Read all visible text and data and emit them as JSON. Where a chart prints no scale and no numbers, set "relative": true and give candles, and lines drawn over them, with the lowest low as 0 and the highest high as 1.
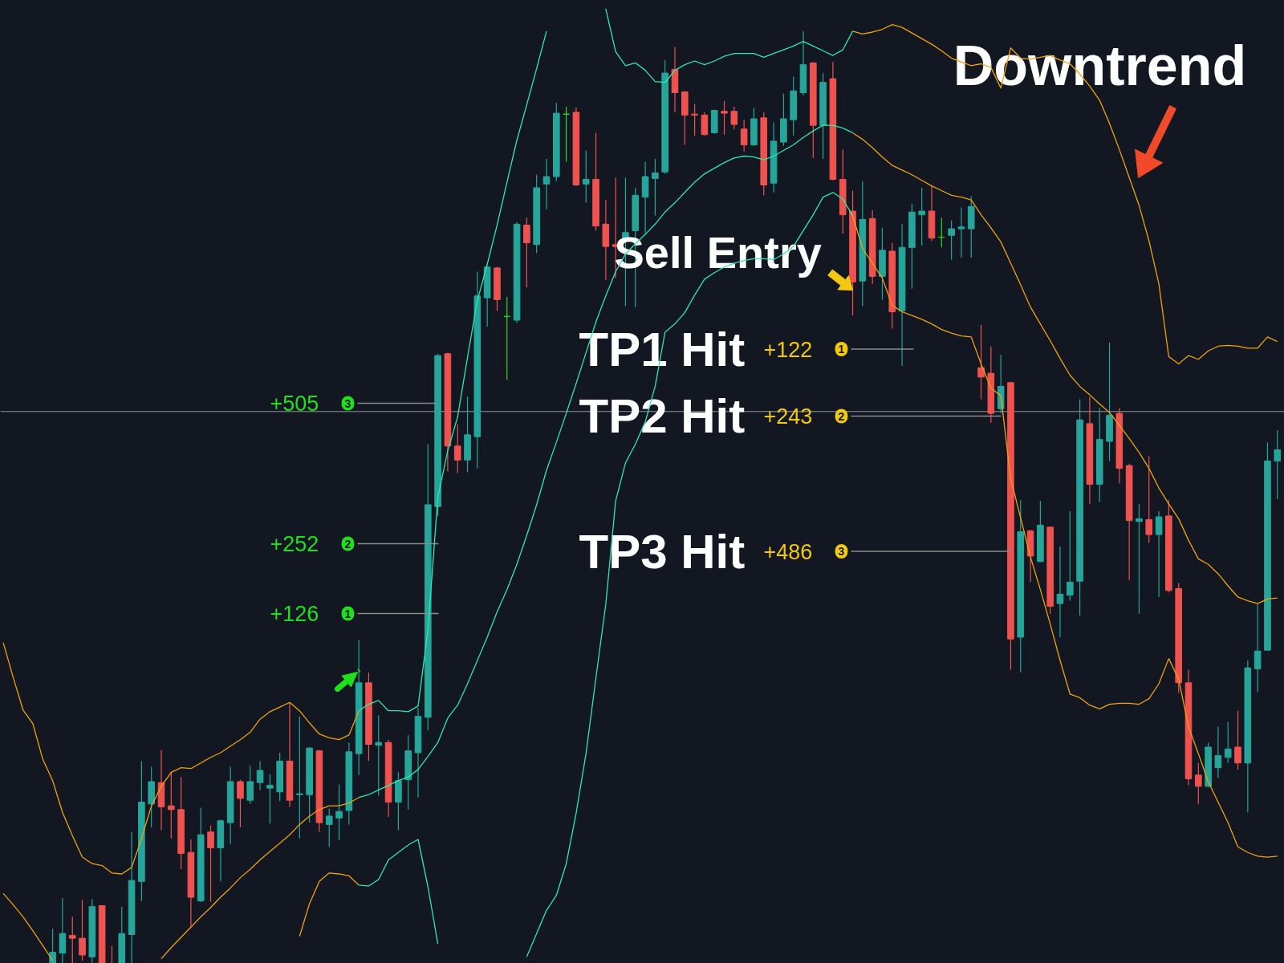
{
  "chart_data": {
    "type": "candlestick",
    "relative": true,
    "tick_labels": false,
    "categories": [
      null,
      null,
      null,
      null,
      null,
      null,
      null,
      null,
      null,
      null,
      null,
      null,
      null,
      null,
      null,
      null,
      null,
      null,
      null,
      null,
      null,
      null,
      null,
      null,
      null,
      null,
      null,
      null,
      null,
      null,
      null,
      null,
      null,
      null,
      null,
      null,
      null,
      null,
      null,
      null,
      null,
      null,
      null,
      null,
      null,
      null,
      null,
      null,
      null,
      null,
      null,
      null,
      null,
      null,
      null,
      null,
      null,
      null,
      null,
      null,
      null,
      null,
      null,
      null,
      null,
      null,
      null,
      null,
      null,
      null,
      null,
      null,
      null,
      null,
      null,
      null,
      null,
      null,
      null,
      null,
      null,
      null,
      null,
      null,
      null,
      null,
      null,
      null,
      null,
      null,
      null,
      null,
      null,
      null,
      null,
      null,
      null,
      null,
      null,
      null,
      null,
      null,
      null,
      null,
      null,
      null,
      null,
      null,
      null,
      null,
      null,
      null,
      null,
      null,
      null,
      null,
      null,
      null,
      null,
      null,
      null,
      null,
      null,
      null,
      null,
      null,
      null,
      null,
      null,
      null
    ],
    "ohlc": [
      null,
      null,
      null,
      null,
      null,
      [
        0,
        0.037,
        0,
        0.012
      ],
      [
        0.011,
        0.07,
        0,
        0.032
      ],
      [
        0.03,
        0.05,
        0,
        0.027
      ],
      [
        0.027,
        0.068,
        0.003,
        0.009
      ],
      [
        0.007,
        0.069,
        0,
        0.061
      ],
      [
        0.062,
        0.062,
        0,
        0
      ],
      [
        0,
        0.019,
        0,
        0
      ],
      [
        0,
        0.061,
        0,
        0.032
      ],
      [
        0.031,
        0.141,
        0,
        0.089
      ],
      [
        0.088,
        0.217,
        0.067,
        0.173
      ],
      [
        0.171,
        0.211,
        0.146,
        0.195
      ],
      [
        0.194,
        0.229,
        0.143,
        0.168
      ],
      [
        0.169,
        0.205,
        0.134,
        0.165
      ],
      [
        0.165,
        0.2,
        0.101,
        0.118
      ],
      [
        0.119,
        0.133,
        0.039,
        0.071
      ],
      [
        0.067,
        0.167,
        0.066,
        0.138
      ],
      [
        0.141,
        0.148,
        0.066,
        0.124
      ],
      [
        0.124,
        0.154,
        0.088,
        0.153
      ],
      [
        0.151,
        0.211,
        0.128,
        0.195
      ],
      [
        0.195,
        0.197,
        0.146,
        0.177
      ],
      [
        0.175,
        0.212,
        0.171,
        0.195
      ],
      [
        0.194,
        0.217,
        0.186,
        0.207
      ],
      [
        0.188,
        0.203,
        0.15,
        0.191
      ],
      [
        0.184,
        0.226,
        0.174,
        0.217
      ],
      [
        0.217,
        0.28,
        0.168,
        0.175
      ],
      [
        0.181,
        0.265,
        0.134,
        0.182
      ],
      [
        0.181,
        0.232,
        0.151,
        0.231
      ],
      [
        0.228,
        0.229,
        0.141,
        0.151
      ],
      [
        0.149,
        0.166,
        0.125,
        0.158
      ],
      [
        0.156,
        0.192,
        0.132,
        0.163
      ],
      [
        0.164,
        0.237,
        0.149,
        0.227
      ],
      [
        0.225,
        0.347,
        0.202,
        0.301
      ],
      [
        0.301,
        0.312,
        0.217,
        0.235
      ],
      [
        0.234,
        0.266,
        0.18,
        0.237
      ],
      [
        0.237,
        0.24,
        0.157,
        0.173
      ],
      [
        0.173,
        0.205,
        0.143,
        0.196
      ],
      [
        0.197,
        0.245,
        0.165,
        0.228
      ],
      [
        0.226,
        0.274,
        0.178,
        0.265
      ],
      [
        0.264,
        0.557,
        0.25,
        0.492
      ],
      [
        0.49,
        0.654,
        0.48,
        0.652
      ],
      [
        0.654,
        0.655,
        0.528,
        0.555
      ],
      [
        0.555,
        0.578,
        0.526,
        0.54
      ],
      [
        0.54,
        0.608,
        0.527,
        0.567
      ],
      [
        0.565,
        0.742,
        0.531,
        0.716
      ],
      [
        0.714,
        0.748,
        0.683,
        0.747
      ],
      [
        0.746,
        0.747,
        0.7,
        0.712
      ],
      [
        0.694,
        0.715,
        0.626,
        0.694
      ],
      [
        0.69,
        0.795,
        0.687,
        0.793
      ],
      [
        0.792,
        0.8,
        0.725,
        0.773
      ],
      [
        0.771,
        0.846,
        0.762,
        0.832
      ],
      [
        0.836,
        0.863,
        0.809,
        0.844
      ],
      [
        0.844,
        0.923,
        0.839,
        0.912
      ],
      [
        0.911,
        0.919,
        0.86,
        0.911
      ],
      [
        0.913,
        0.918,
        0.834,
        0.835
      ],
      [
        0.836,
        0.872,
        0.816,
        0.841
      ],
      [
        0.841,
        0.891,
        0.786,
        0.791
      ],
      [
        0.793,
        0.819,
        0.733,
        0.769
      ],
      [
        0.771,
        0.843,
        0.735,
        0.769
      ],
      [
        0.778,
        0.843,
        0.705,
        0.784
      ],
      [
        0.786,
        0.832,
        0.704,
        0.824
      ],
      [
        0.822,
        0.86,
        0.783,
        0.844
      ],
      [
        0.842,
        0.863,
        0.802,
        0.848
      ],
      [
        0.849,
        0.969,
        0.847,
        0.955
      ],
      [
        0.959,
        0.983,
        0.913,
        0.934
      ],
      [
        0.935,
        0.935,
        0.878,
        0.91
      ],
      [
        0.911,
        0.922,
        0.888,
        0.91
      ],
      [
        0.91,
        0.913,
        0.888,
        0.889
      ],
      [
        0.891,
        0.916,
        0.89,
        0.915
      ],
      [
        0.914,
        0.925,
        0.889,
        0.912
      ],
      [
        0.914,
        0.919,
        0.895,
        0.9
      ],
      [
        0.895,
        0.905,
        0.871,
        0.878
      ],
      [
        0.878,
        0.918,
        0.877,
        0.906
      ],
      [
        0.907,
        0.913,
        0.824,
        0.835
      ],
      [
        0.837,
        0.902,
        0.827,
        0.882
      ],
      [
        0.881,
        0.933,
        0.877,
        0.906
      ],
      [
        0.905,
        0.951,
        0.888,
        0.936
      ],
      [
        0.934,
        1,
        0.931,
        0.964
      ],
      [
        0.966,
        0.967,
        0.864,
        0.899
      ],
      [
        0.899,
        0.955,
        0.863,
        0.945
      ],
      [
        0.949,
        0.967,
        0.84,
        0.841
      ],
      [
        0.841,
        0.873,
        0.783,
        0.803
      ],
      [
        0.807,
        0.829,
        0.695,
        0.731
      ],
      [
        0.732,
        0.839,
        0.705,
        0.798
      ],
      [
        0.799,
        0.808,
        0.729,
        0.737
      ],
      [
        0.737,
        0.789,
        0.712,
        0.765
      ],
      [
        0.764,
        0.773,
        0.681,
        0.699
      ],
      [
        0.7,
        0.793,
        0.641,
        0.768
      ],
      [
        0.768,
        0.815,
        0.724,
        0.806
      ],
      [
        0.803,
        0.832,
        0.77,
        0.807
      ],
      [
        0.807,
        0.834,
        0.775,
        0.778
      ],
      [
        0.779,
        0.8,
        0.768,
        0.779
      ],
      [
        0.781,
        0.797,
        0.755,
        0.788
      ],
      [
        0.788,
        0.811,
        0.757,
        0.79
      ],
      [
        0.788,
        0.823,
        0.757,
        0.812
      ],
      [
        0.639,
        0.685,
        0.605,
        0.629
      ],
      [
        0.633,
        0.662,
        0.58,
        0.59
      ],
      [
        0.595,
        0.653,
        0.59,
        0.619
      ],
      [
        0.623,
        0.624,
        0.315,
        0.348
      ],
      [
        0.35,
        0.497,
        0.312,
        0.463
      ],
      [
        0.464,
        0.465,
        0.409,
        0.437
      ],
      [
        0.431,
        0.496,
        0.431,
        0.47
      ],
      [
        0.468,
        0.468,
        0.375,
        0.383
      ],
      [
        0.386,
        0.447,
        0.35,
        0.396
      ],
      [
        0.395,
        0.485,
        0.389,
        0.409
      ],
      [
        0.41,
        0.605,
        0.373,
        0.583
      ],
      [
        0.579,
        0.608,
        0.493,
        0.514
      ],
      [
        0.514,
        0.596,
        0.495,
        0.562
      ],
      [
        0.56,
        0.666,
        0.539,
        0.588
      ],
      [
        0.59,
        0.596,
        0.515,
        0.531
      ],
      [
        0.534,
        0.536,
        0.411,
        0.475
      ],
      [
        0.474,
        0.493,
        0.375,
        0.477
      ],
      [
        0.476,
        0.544,
        0.451,
        0.46
      ],
      [
        0.46,
        0.485,
        0.393,
        0.479
      ],
      [
        0.48,
        0.497,
        0.398,
        0.4
      ],
      [
        0.402,
        0.408,
        0.29,
        0.301
      ],
      [
        0.301,
        0.315,
        0.191,
        0.198
      ],
      [
        0.202,
        0.215,
        0.171,
        0.19
      ],
      [
        0.19,
        0.237,
        0.189,
        0.232
      ],
      [
        0.21,
        0.254,
        0.199,
        0.223
      ],
      [
        0.221,
        0.259,
        0.215,
        0.23
      ],
      [
        0.232,
        0.271,
        0.208,
        0.215
      ],
      [
        0.215,
        0.325,
        0.162,
        0.317
      ],
      [
        0.316,
        0.385,
        0.291,
        0.335
      ],
      [
        0.336,
        0.559,
        0.336,
        0.539
      ],
      [
        0.539,
        0.572,
        0.498,
        0.551
      ]
    ],
    "colors": [
      null,
      null,
      null,
      null,
      null,
      "#26a69a",
      "#26a69a",
      "#ef5350",
      "#ef5350",
      "#26a69a",
      "#ef5350",
      "#ef5350",
      "#26a69a",
      "#26a69a",
      "#26a69a",
      "#26a69a",
      "#ef5350",
      "#ef5350",
      "#ef5350",
      "#ef5350",
      "#26a69a",
      "#ef5350",
      "#26a69a",
      "#26a69a",
      "#ef5350",
      "#26a69a",
      "#26a69a",
      "#26a69a",
      "#26a69a",
      "#ef5350",
      "#26a69a",
      "#26a69a",
      "#ef5350",
      "#26a69a",
      "#26a69a",
      "#26a69a",
      "#26a69a",
      "#ef5350",
      "#26a69a",
      "#ef5350",
      "#26a69a",
      "#26a69a",
      "#26a69a",
      "#26a69a",
      "#26a69a",
      "#ef5350",
      "#ef5350",
      "#26a69a",
      "#26a69a",
      "#26a69a",
      "#ef5350",
      "#1ee11e",
      "#26a69a",
      "#ef5350",
      "#26a69a",
      "#26a69a",
      "#26a69a",
      "#1ee11e",
      "#ef5350",
      "#26a69a",
      "#ef5350",
      "#ef5350",
      "#ef5350",
      "#26a69a",
      "#26a69a",
      "#26a69a",
      "#26a69a",
      "#26a69a",
      "#ef5350",
      "#ef5350",
      "#ef5350",
      "#ef5350",
      "#26a69a",
      "#ef5350",
      "#ef5350",
      "#ef5350",
      "#26a69a",
      "#ef5350",
      "#26a69a",
      "#26a69a",
      "#26a69a",
      "#26a69a",
      "#ef5350",
      "#26a69a",
      "#ef5350",
      "#ef5350",
      "#ef5350",
      "#26a69a",
      "#ef5350",
      "#26a69a",
      "#ef5350",
      "#26a69a",
      "#26a69a",
      "#26a69a",
      "#ef5350",
      "#1ee11e",
      "#26a69a",
      "#26a69a",
      "#26a69a",
      "#ef5350",
      "#ef5350",
      "#26a69a",
      "#ef5350",
      "#26a69a",
      "#ef5350",
      "#26a69a",
      "#ef5350",
      "#26a69a",
      "#26a69a",
      "#26a69a",
      "#ef5350",
      "#26a69a",
      "#26a69a",
      "#ef5350",
      "#ef5350",
      "#26a69a",
      "#ef5350",
      "#26a69a",
      "#ef5350",
      "#ef5350",
      "#ef5350",
      "#ef5350",
      "#26a69a",
      "#26a69a",
      "#26a69a",
      "#ef5350",
      "#26a69a",
      "#26a69a",
      "#26a69a",
      "#26a69a"
    ],
    "series": [
      {
        "type": "line",
        "color": "#f0a20c",
        "values": [
          0.344,
          0.307,
          0.272,
          0.257,
          0.219,
          0.196,
          0.162,
          0.137,
          0.114,
          0.107,
          0.105,
          0.097,
          0.096,
          0.103,
          0.134,
          0.169,
          0.19,
          0.205,
          0.21,
          0.209,
          0.215,
          0.221,
          0.226,
          0.233,
          0.24,
          0.248,
          0.262,
          0.27,
          0.275,
          0.28,
          0.271,
          0.258,
          0.246,
          0.242,
          0.24,
          0.245,
          0.271,
          null,
          null,
          null,
          null,
          null,
          null,
          null,
          null,
          null,
          null,
          null,
          null,
          null,
          null,
          null,
          null,
          null,
          null,
          null,
          null,
          null,
          null,
          null,
          null,
          null,
          null,
          null,
          null,
          null,
          null,
          null,
          null,
          null,
          null,
          null,
          null,
          null,
          null,
          null,
          null,
          null,
          null,
          null,
          null,
          null,
          null,
          null,
          null,
          null,
          1,
          0.997,
          0.999,
          1.002,
          1.007,
          1.004,
          0.998,
          0.992,
          0.986,
          0.979,
          0.971,
          0.967,
          0.963,
          0.965,
          0.961,
          0.939,
          0.982,
          0.971,
          0.97,
          0.972,
          0.974,
          0.969,
          0.965,
          0.954,
          0.941,
          0.926,
          0.901,
          0.873,
          0.843,
          0.813,
          0.775,
          0.729,
          0.651,
          0.643,
          0.652,
          0.648,
          0.657,
          0.662,
          0.663,
          0.662,
          0.66,
          0.66,
          0.672,
          0.667
        ]
      },
      {
        "type": "line",
        "color": "#2ee8b0",
        "values": [
          null,
          null,
          null,
          null,
          null,
          null,
          null,
          null,
          null,
          null,
          null,
          null,
          null,
          null,
          null,
          null,
          null,
          null,
          null,
          null,
          null,
          null,
          null,
          null,
          null,
          null,
          null,
          null,
          null,
          null,
          null,
          null,
          null,
          null,
          null,
          null,
          0.271,
          0.278,
          0.282,
          0.271,
          0.271,
          0.27,
          0.276,
          0.358,
          0.5,
          0.55,
          0.586,
          0.65,
          0.711,
          0.75,
          0.792,
          0.838,
          0.883,
          0.921,
          0.96,
          1,
          null,
          null,
          null,
          null,
          null,
          1.024,
          0.978,
          0.963,
          0.966,
          0.958,
          0.946,
          0.945,
          0.958,
          0.964,
          0.968,
          0.964,
          0.968,
          0.973,
          0.976,
          0.976,
          0.976,
          0.972,
          0.976,
          0.98,
          0.984,
          0.989,
          0.984,
          0.979,
          0.974,
          0.98,
          1,
          null,
          null,
          null,
          null,
          null,
          null,
          null,
          null,
          null,
          null,
          null,
          null,
          null,
          null,
          null,
          null,
          null,
          null,
          null,
          null,
          null,
          null,
          null,
          null,
          null,
          null,
          null,
          null,
          null,
          null,
          null,
          null,
          null,
          null,
          null,
          null,
          null,
          null,
          null,
          null,
          null,
          null,
          null
        ]
      },
      {
        "type": "line",
        "color": "#f0a20c",
        "values": [
          0.075,
          0.063,
          0.05,
          0.035,
          0.019,
          0.003,
          null,
          null,
          null,
          null,
          null,
          null,
          null,
          null,
          null,
          null,
          0.005,
          0.017,
          0.028,
          0.039,
          0.05,
          0.06,
          0.071,
          0.081,
          0.092,
          0.101,
          0.111,
          0.12,
          0.129,
          0.138,
          0.149,
          0.158,
          0.165,
          0.169,
          0.169,
          0.172,
          0.178,
          null,
          null,
          null,
          null,
          null,
          null,
          null,
          null,
          null,
          null,
          null,
          null,
          null,
          null,
          null,
          null,
          null,
          null,
          null,
          null,
          null,
          null,
          null,
          null,
          null,
          null,
          null,
          null,
          null,
          null,
          null,
          null,
          null,
          null,
          null,
          null,
          null,
          null,
          null,
          null,
          null,
          null,
          null,
          null,
          null,
          null,
          null,
          null,
          null,
          0.891,
          0.884,
          0.875,
          0.865,
          0.856,
          0.851,
          0.846,
          0.84,
          0.834,
          0.829,
          0.824,
          0.822,
          0.819,
          0.803,
          0.789,
          0.774,
          0.751,
          0.728,
          0.704,
          0.686,
          0.668,
          0.649,
          0.631,
          0.619,
          0.61,
          0.6,
          0.591,
          0.577,
          0.563,
          0.548,
          0.531,
          0.51,
          0.493,
          0.477,
          0.454,
          0.434,
          0.428,
          0.418,
          0.405,
          0.393,
          0.389,
          0.386,
          0.391,
          0.392
        ]
      },
      {
        "type": "line",
        "color": "#2ee8b0",
        "values": [
          null,
          null,
          null,
          null,
          null,
          null,
          null,
          null,
          null,
          null,
          null,
          null,
          null,
          null,
          null,
          null,
          null,
          null,
          null,
          null,
          null,
          null,
          null,
          null,
          null,
          null,
          null,
          null,
          null,
          null,
          null,
          null,
          null,
          null,
          null,
          null,
          0.178,
          0.181,
          0.186,
          0.191,
          0.196,
          0.2,
          0.208,
          0.222,
          0.237,
          0.263,
          0.277,
          0.3,
          0.325,
          0.35,
          0.377,
          0.401,
          0.428,
          0.459,
          0.492,
          0.529,
          0.559,
          0.59,
          0.622,
          0.655,
          0.688,
          0.716,
          0.742,
          0.761,
          0.772,
          0.782,
          0.793,
          0.806,
          0.816,
          0.827,
          0.838,
          0.847,
          0.853,
          0.859,
          0.864,
          0.866,
          0.865,
          0.862,
          0.866,
          0.872,
          0.878,
          0.886,
          0.893,
          0.899,
          0.899,
          0.896,
          0.891,
          null,
          null,
          null,
          null,
          null,
          null,
          null,
          null,
          null,
          null,
          null,
          null,
          null,
          null,
          null,
          null,
          null,
          null,
          null,
          null,
          null,
          null,
          null,
          null,
          null,
          null,
          null,
          null,
          null,
          null,
          null,
          null,
          null,
          null,
          null,
          null,
          null,
          null,
          null,
          null,
          null,
          null,
          null
        ]
      },
      {
        "type": "line",
        "color": "#f0a20c",
        "values": [
          null,
          null,
          null,
          null,
          null,
          null,
          null,
          null,
          null,
          null,
          null,
          null,
          null,
          null,
          null,
          null,
          null,
          null,
          null,
          null,
          null,
          null,
          null,
          null,
          null,
          null,
          null,
          null,
          null,
          null,
          0.029,
          0.064,
          0.088,
          0.097,
          0.096,
          0.094,
          0.084,
          null,
          null,
          null,
          null,
          null,
          null,
          null,
          null,
          null,
          null,
          null,
          null,
          null,
          null,
          null,
          null,
          null,
          null,
          null,
          null,
          null,
          null,
          null,
          null,
          null,
          null,
          null,
          null,
          null,
          null,
          null,
          null,
          null,
          null,
          null,
          null,
          null,
          null,
          null,
          null,
          null,
          null,
          null,
          null,
          null,
          null,
          null,
          null,
          null,
          0.802,
          0.767,
          0.751,
          0.735,
          0.706,
          0.699,
          0.695,
          0.691,
          0.686,
          0.68,
          0.676,
          0.673,
          0.672,
          0.643,
          0.617,
          0.609,
          0.52,
          0.478,
          0.436,
          0.401,
          0.364,
          0.325,
          0.289,
          0.285,
          0.277,
          0.273,
          0.278,
          0.279,
          0.279,
          0.278,
          0.284,
          0.3,
          0.327,
          0.305,
          0.254,
          0.225,
          0.195,
          0.173,
          0.151,
          0.125,
          0.119,
          0.115,
          0.114,
          0.115
        ]
      },
      {
        "type": "line",
        "color": "#2ee8b0",
        "values": [
          null,
          null,
          null,
          null,
          null,
          null,
          null,
          null,
          null,
          null,
          null,
          null,
          null,
          null,
          null,
          null,
          null,
          null,
          null,
          null,
          null,
          null,
          null,
          null,
          null,
          null,
          null,
          null,
          null,
          null,
          null,
          null,
          null,
          null,
          null,
          null,
          0.084,
          0.083,
          0.09,
          0.111,
          0.119,
          0.127,
          0.133,
          0.082,
          0.021,
          null,
          null,
          null,
          null,
          null,
          null,
          null,
          null,
          0.007,
          0.032,
          0.057,
          0.073,
          0.107,
          0.161,
          0.225,
          0.306,
          0.385,
          0.496,
          0.537,
          0.557,
          0.581,
          0.619,
          0.677,
          0.686,
          0.698,
          0.717,
          0.734,
          0.741,
          0.747,
          0.751,
          0.754,
          0.756,
          0.756,
          0.755,
          0.761,
          0.769,
          0.786,
          0.803,
          0.822,
          0.827,
          0.82,
          0.802,
          null,
          null,
          null,
          null,
          null,
          null,
          null,
          null,
          null,
          null,
          null,
          null,
          null,
          null,
          null,
          null,
          null,
          null,
          null,
          null,
          null,
          null,
          null,
          null,
          null,
          null,
          null,
          null,
          null,
          null,
          null,
          null,
          null,
          null,
          null,
          null,
          null,
          null,
          null,
          null,
          null,
          null,
          null
        ]
      }
    ],
    "ref_lines": [
      {
        "axis": "y",
        "value": 0.592,
        "color": "#9598a1"
      }
    ],
    "annotations": [
      "Downtrend",
      "Sell Entry",
      "TP1 Hit",
      "+122",
      "1",
      "TP2 Hit",
      "+243",
      "2",
      "TP3 Hit",
      "+486",
      "3",
      "+505",
      "3",
      "+252",
      "2",
      "+126",
      "1"
    ]
  }
}
